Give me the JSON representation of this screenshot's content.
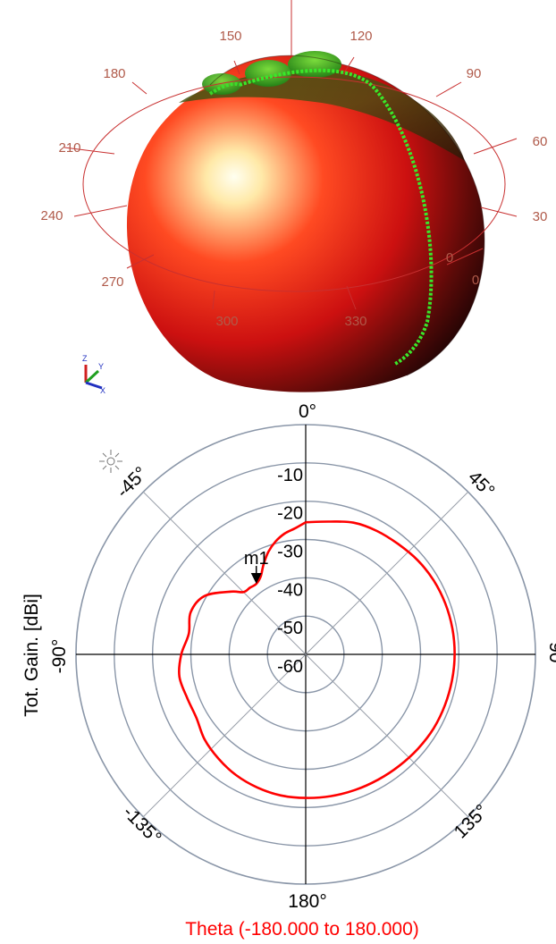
{
  "pattern3d": {
    "azimuth_labels": [
      "150",
      "120",
      "180",
      "90",
      "210",
      "60",
      "240",
      "30",
      "270",
      "0",
      "300",
      "330",
      "0"
    ]
  },
  "axes_icon": {
    "icon": "xyz-axes-icon",
    "labels": [
      "Z",
      "Y",
      "X"
    ]
  },
  "sun_icon": {
    "icon": "sun-icon"
  },
  "chart_data": {
    "type": "polar_line",
    "ylabel": "Tot. Gain. [dBi]",
    "xlabel": "Theta (-180.000 to 180.000)",
    "radial_ticks": [
      "-10",
      "-20",
      "-30",
      "-40",
      "-50",
      "-60"
    ],
    "radial_range": [
      -60,
      0
    ],
    "angle_labels": [
      "0°",
      "45°",
      "90°",
      "135°",
      "180°",
      "-135°",
      "-90°",
      "-45°"
    ],
    "grid": true,
    "marker": {
      "label": "m1",
      "theta": -35,
      "gain": -37.5
    },
    "series": [
      {
        "color": "#ff0000",
        "theta": [
          0,
          10,
          20,
          30,
          40,
          50,
          60,
          70,
          80,
          90,
          100,
          110,
          120,
          130,
          140,
          150,
          160,
          170,
          180,
          -170,
          -160,
          -150,
          -140,
          -130,
          -120,
          -110,
          -100,
          -90,
          -80,
          -70,
          -60,
          -50,
          -45,
          -40,
          -35,
          -30,
          -25,
          -20,
          -15,
          -10,
          -5,
          0
        ],
        "gain": [
          -25.5,
          -24.8,
          -23.4,
          -22.8,
          -22.4,
          -21.8,
          -21.4,
          -21.2,
          -21.1,
          -21.1,
          -21.2,
          -21.3,
          -21.4,
          -21.7,
          -22.0,
          -22.2,
          -22.3,
          -22.4,
          -22.5,
          -22.6,
          -23.0,
          -23.6,
          -24.5,
          -25.5,
          -27.0,
          -27.0,
          -26.5,
          -27.5,
          -29.0,
          -28.0,
          -29.5,
          -34.5,
          -37.0,
          -37.3,
          -37.5,
          -36.5,
          -34.0,
          -31.5,
          -29.5,
          -28.0,
          -27.0,
          -25.5
        ]
      }
    ]
  }
}
